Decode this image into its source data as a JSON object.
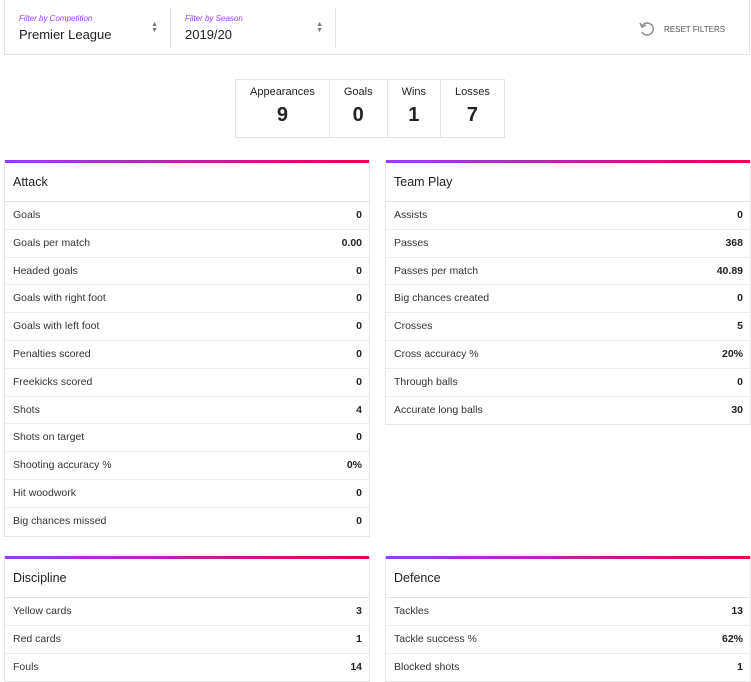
{
  "filters": [
    {
      "label": "Filter by Competition",
      "value": "Premier League"
    },
    {
      "label": "Filter by Season",
      "value": "2019/20"
    }
  ],
  "reset": "RESET FILTERS",
  "summary": [
    {
      "label": "Appearances",
      "value": 9
    },
    {
      "label": "Goals",
      "value": 0
    },
    {
      "label": "Wins",
      "value": 1
    },
    {
      "label": "Losses",
      "value": 7
    }
  ],
  "sections": [
    {
      "title": "Attack",
      "rows": [
        [
          "Goals",
          0
        ],
        [
          "Goals per match",
          "0.00"
        ],
        [
          "Headed goals",
          0
        ],
        [
          "Goals with right foot",
          0
        ],
        [
          "Goals with left foot",
          0
        ],
        [
          "Penalties scored",
          0
        ],
        [
          "Freekicks scored",
          0
        ],
        [
          "Shots",
          4
        ],
        [
          "Shots on target",
          0
        ],
        [
          "Shooting accuracy %",
          "0%"
        ],
        [
          "Hit woodwork",
          0
        ],
        [
          "Big chances missed",
          0
        ]
      ]
    },
    {
      "title": "Team Play",
      "rows": [
        [
          "Assists",
          0
        ],
        [
          "Passes",
          368
        ],
        [
          "Passes per match",
          "40.89"
        ],
        [
          "Big chances created",
          0
        ],
        [
          "Crosses",
          5
        ],
        [
          "Cross accuracy %",
          "20%"
        ],
        [
          "Through balls",
          0
        ],
        [
          "Accurate long balls",
          30
        ]
      ]
    },
    {
      "title": "Discipline",
      "rows": [
        [
          "Yellow cards",
          3
        ],
        [
          "Red cards",
          1
        ],
        [
          "Fouls",
          14
        ]
      ]
    },
    {
      "title": "Defence",
      "rows": [
        [
          "Tackles",
          13
        ],
        [
          "Tackle success %",
          "62%"
        ],
        [
          "Blocked shots",
          1
        ]
      ]
    }
  ]
}
